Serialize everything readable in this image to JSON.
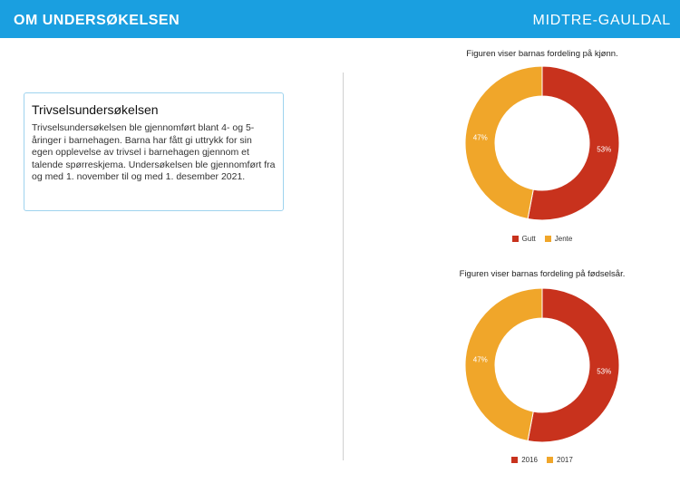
{
  "header": {
    "title": "OM UNDERSØKELSEN",
    "region": "MIDTRE-GAULDAL"
  },
  "info": {
    "heading": "Trivselsundersøkelsen",
    "body": "Trivselsundersøkelsen ble gjennomført blant 4- og 5-åringer i barnehagen. Barna har fått gi uttrykk for sin egen opplevelse av trivsel i barnehagen gjennom et talende spørreskjema. Undersøkelsen ble gjennomført fra og med 1. november til og med 1. desember 2021."
  },
  "chart_data": [
    {
      "type": "pie",
      "title": "Figuren viser barnas fordeling på kjønn.",
      "categories": [
        "Gutt",
        "Jente"
      ],
      "values": [
        53,
        47
      ],
      "labels": [
        "53%",
        "47%"
      ],
      "colors": [
        "#c8321d",
        "#f0a62a"
      ],
      "legend": "bottom"
    },
    {
      "type": "pie",
      "title": "Figuren viser barnas fordeling på fødselsår.",
      "categories": [
        "2016",
        "2017"
      ],
      "values": [
        53,
        47
      ],
      "labels": [
        "53%",
        "47%"
      ],
      "colors": [
        "#c8321d",
        "#f0a62a"
      ],
      "legend": "bottom"
    }
  ]
}
